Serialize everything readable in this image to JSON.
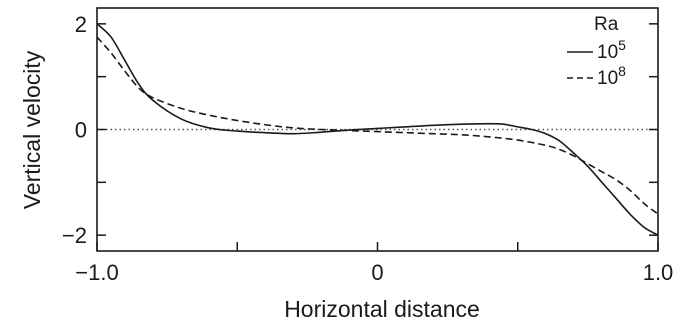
{
  "chart_data": {
    "type": "line",
    "title": "",
    "xlabel": "Horizontal distance",
    "ylabel": "Vertical velocity",
    "xlim": [
      -1.0,
      1.0
    ],
    "ylim": [
      -2.3,
      2.3
    ],
    "x_ticks": [
      {
        "value": -1.0,
        "label": "−1.0"
      },
      {
        "value": 0,
        "label": "0"
      },
      {
        "value": 1.0,
        "label": "1.0"
      }
    ],
    "y_ticks": [
      {
        "value": 2,
        "label": "2"
      },
      {
        "value": 0,
        "label": "0"
      },
      {
        "value": -2,
        "label": "−2"
      }
    ],
    "x_minor_ticks": [
      -0.5,
      0.5
    ],
    "y_minor_ticks": [
      1,
      -1
    ],
    "grid": false,
    "reference_line": {
      "y": 0,
      "style": "dotted"
    },
    "legend": {
      "title": "Ra",
      "position": "top-right",
      "entries": [
        {
          "base": "10",
          "exponent": "5",
          "style": "solid"
        },
        {
          "base": "10",
          "exponent": "8",
          "style": "dashed"
        }
      ]
    },
    "series": [
      {
        "style": "solid",
        "color": "#1a1a1a",
        "points": [
          [
            -1.0,
            2.0
          ],
          [
            -0.95,
            1.75
          ],
          [
            -0.9,
            1.3
          ],
          [
            -0.85,
            0.85
          ],
          [
            -0.8,
            0.55
          ],
          [
            -0.7,
            0.2
          ],
          [
            -0.6,
            0.03
          ],
          [
            -0.5,
            -0.03
          ],
          [
            -0.4,
            -0.06
          ],
          [
            -0.3,
            -0.08
          ],
          [
            -0.2,
            -0.05
          ],
          [
            -0.1,
            -0.01
          ],
          [
            0.0,
            0.02
          ],
          [
            0.1,
            0.05
          ],
          [
            0.2,
            0.08
          ],
          [
            0.3,
            0.1
          ],
          [
            0.4,
            0.11
          ],
          [
            0.45,
            0.1
          ],
          [
            0.5,
            0.05
          ],
          [
            0.55,
            0.0
          ],
          [
            0.6,
            -0.08
          ],
          [
            0.65,
            -0.22
          ],
          [
            0.7,
            -0.45
          ],
          [
            0.75,
            -0.7
          ],
          [
            0.8,
            -1.0
          ],
          [
            0.85,
            -1.3
          ],
          [
            0.9,
            -1.6
          ],
          [
            0.95,
            -1.85
          ],
          [
            1.0,
            -2.0
          ]
        ]
      },
      {
        "style": "dashed",
        "color": "#1a1a1a",
        "points": [
          [
            -1.0,
            1.75
          ],
          [
            -0.95,
            1.45
          ],
          [
            -0.9,
            1.1
          ],
          [
            -0.85,
            0.78
          ],
          [
            -0.8,
            0.6
          ],
          [
            -0.7,
            0.4
          ],
          [
            -0.6,
            0.27
          ],
          [
            -0.5,
            0.17
          ],
          [
            -0.4,
            0.09
          ],
          [
            -0.3,
            0.03
          ],
          [
            -0.2,
            0.0
          ],
          [
            -0.1,
            -0.02
          ],
          [
            0.0,
            -0.04
          ],
          [
            0.1,
            -0.06
          ],
          [
            0.2,
            -0.08
          ],
          [
            0.3,
            -0.1
          ],
          [
            0.4,
            -0.14
          ],
          [
            0.5,
            -0.2
          ],
          [
            0.6,
            -0.3
          ],
          [
            0.65,
            -0.38
          ],
          [
            0.7,
            -0.5
          ],
          [
            0.75,
            -0.65
          ],
          [
            0.8,
            -0.8
          ],
          [
            0.85,
            -0.95
          ],
          [
            0.9,
            -1.15
          ],
          [
            0.95,
            -1.4
          ],
          [
            1.0,
            -1.6
          ]
        ]
      }
    ]
  },
  "colors": {
    "axis": "#1a1a1a",
    "reference_line": "#555555",
    "background": "#ffffff"
  }
}
